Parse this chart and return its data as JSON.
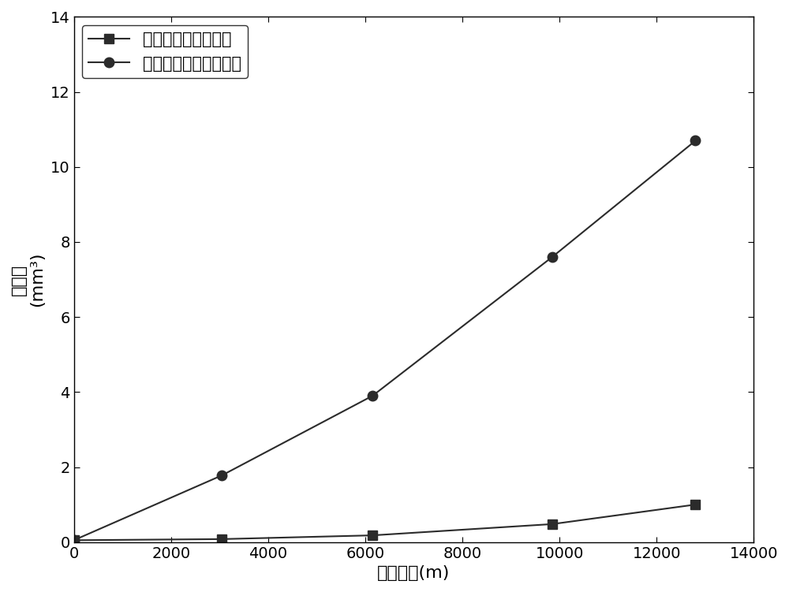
{
  "series1_label": "脱钻的金刚石复合片",
  "series2_label": "未脱钻的金刚石复合片",
  "series1_x": [
    0,
    3050,
    6150,
    9850,
    12800
  ],
  "series1_y": [
    0.05,
    0.08,
    0.18,
    0.48,
    1.0
  ],
  "series2_x": [
    0,
    3050,
    6150,
    9850,
    12800
  ],
  "series2_y": [
    0.05,
    1.78,
    3.9,
    7.6,
    10.7
  ],
  "xlabel": "直线距离(m)",
  "ylabel_line1": "磨损量",
  "ylabel_line2": "(mm³)",
  "xlim": [
    0,
    14000
  ],
  "ylim": [
    0,
    14
  ],
  "xticks": [
    0,
    2000,
    4000,
    6000,
    8000,
    10000,
    12000,
    14000
  ],
  "yticks": [
    0,
    2,
    4,
    6,
    8,
    10,
    12,
    14
  ],
  "line_color": "#2b2b2b",
  "marker1": "s",
  "marker2": "o",
  "markersize": 9,
  "linewidth": 1.5,
  "legend_fontsize": 15,
  "axis_fontsize": 16,
  "tick_fontsize": 14,
  "background_color": "#ffffff"
}
